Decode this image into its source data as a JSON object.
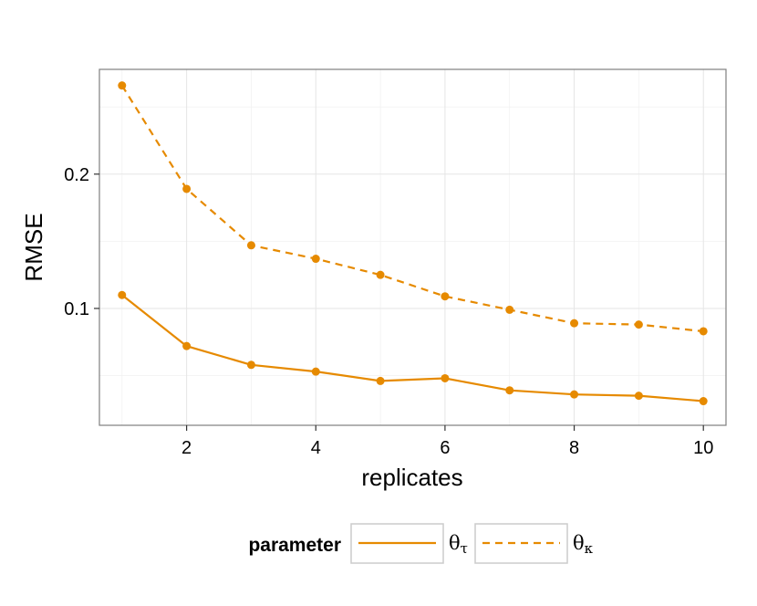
{
  "chart_data": {
    "type": "line",
    "xlabel": "replicates",
    "ylabel": "RMSE",
    "xlim": [
      0.65,
      10.35
    ],
    "ylim": [
      0.013,
      0.278
    ],
    "x_ticks": [
      2,
      4,
      6,
      8,
      10
    ],
    "x_tick_labels": [
      "2",
      "4",
      "6",
      "8",
      "10"
    ],
    "y_ticks": [
      0.1,
      0.2
    ],
    "y_tick_labels": [
      "0.1",
      "0.2"
    ],
    "grid": true,
    "legend_position": "bottom",
    "legend_title": "parameter",
    "x": [
      1,
      2,
      3,
      4,
      5,
      6,
      7,
      8,
      9,
      10
    ],
    "series": [
      {
        "name": "θτ",
        "name_base": "θ",
        "name_sub": "τ",
        "line_style": "solid",
        "values": [
          0.11,
          0.072,
          0.058,
          0.053,
          0.046,
          0.048,
          0.039,
          0.036,
          0.035,
          0.031
        ]
      },
      {
        "name": "θκ",
        "name_base": "θ",
        "name_sub": "κ",
        "line_style": "dashed",
        "values": [
          0.266,
          0.189,
          0.147,
          0.137,
          0.125,
          0.109,
          0.099,
          0.089,
          0.088,
          0.083
        ]
      }
    ],
    "color": "#e68a00"
  }
}
